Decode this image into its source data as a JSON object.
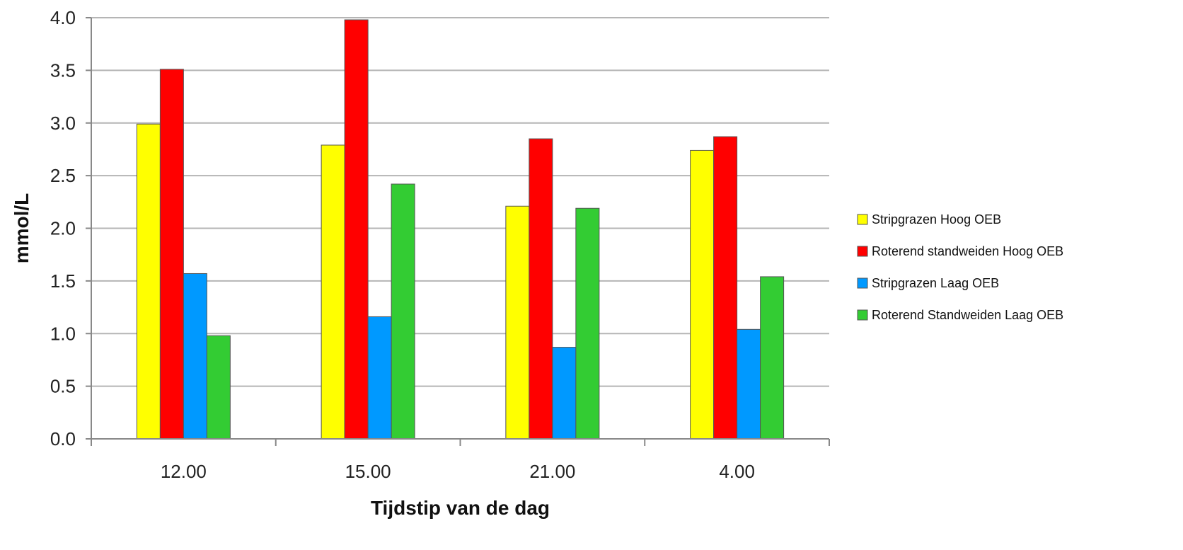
{
  "chart_data": {
    "type": "bar",
    "title": "",
    "xlabel": "Tijdstip van de dag",
    "ylabel": "mmol/L",
    "ylim": [
      0,
      4.0
    ],
    "yticks": [
      "0.0",
      "0.5",
      "1.0",
      "1.5",
      "2.0",
      "2.5",
      "3.0",
      "3.5",
      "4.0"
    ],
    "grid": true,
    "legend_position": "right",
    "categories": [
      "12.00",
      "15.00",
      "21.00",
      "4.00"
    ],
    "series": [
      {
        "name": "Stripgrazen Hoog OEB",
        "color": "#ffff00",
        "values": [
          2.99,
          2.79,
          2.21,
          2.74
        ]
      },
      {
        "name": "Roterend standweiden Hoog OEB",
        "color": "#ff0000",
        "values": [
          3.51,
          3.98,
          2.85,
          2.87
        ]
      },
      {
        "name": "Stripgrazen Laag OEB",
        "color": "#0099ff",
        "values": [
          1.57,
          1.16,
          0.87,
          1.04
        ]
      },
      {
        "name": "Roterend Standweiden Laag OEB",
        "color": "#33cc33",
        "values": [
          0.98,
          2.42,
          2.19,
          1.54
        ]
      }
    ]
  }
}
